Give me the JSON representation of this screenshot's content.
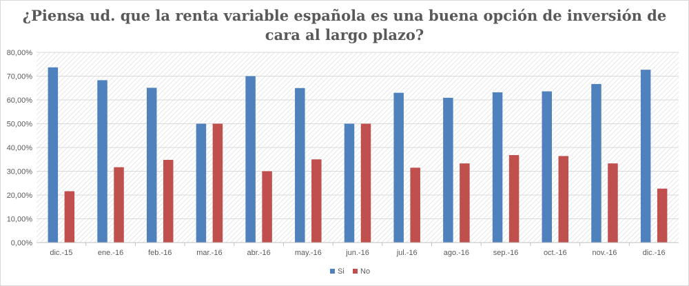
{
  "chart_data": {
    "type": "bar",
    "title_lines": [
      "¿Piensa ud. que la renta variable española es una buena opción de inversión de",
      "cara al largo plazo?"
    ],
    "categories": [
      "dic.-15",
      "ene.-16",
      "feb.-16",
      "mar.-16",
      "abr.-16",
      "may.-16",
      "jun.-16",
      "jul.-16",
      "ago.-16",
      "sep.-16",
      "oct.-16",
      "nov.-16",
      "dic.-16"
    ],
    "series": [
      {
        "name": "Si",
        "color": "#4f81bd",
        "values": [
          73.7,
          68.3,
          65.1,
          50.0,
          70.0,
          65.0,
          50.0,
          63.0,
          60.9,
          63.2,
          63.6,
          66.7,
          72.7
        ]
      },
      {
        "name": "No",
        "color": "#c0504d",
        "values": [
          21.6,
          31.7,
          34.8,
          50.0,
          30.0,
          35.0,
          50.0,
          31.5,
          33.3,
          36.8,
          36.4,
          33.3,
          22.7
        ]
      }
    ],
    "yticks": [
      "0,00%",
      "10,00%",
      "20,00%",
      "30,00%",
      "40,00%",
      "50,00%",
      "60,00%",
      "70,00%",
      "80,00%"
    ],
    "ylim": [
      0,
      80
    ],
    "xlabel": "",
    "ylabel": "",
    "grid": true,
    "legend_position": "bottom"
  }
}
